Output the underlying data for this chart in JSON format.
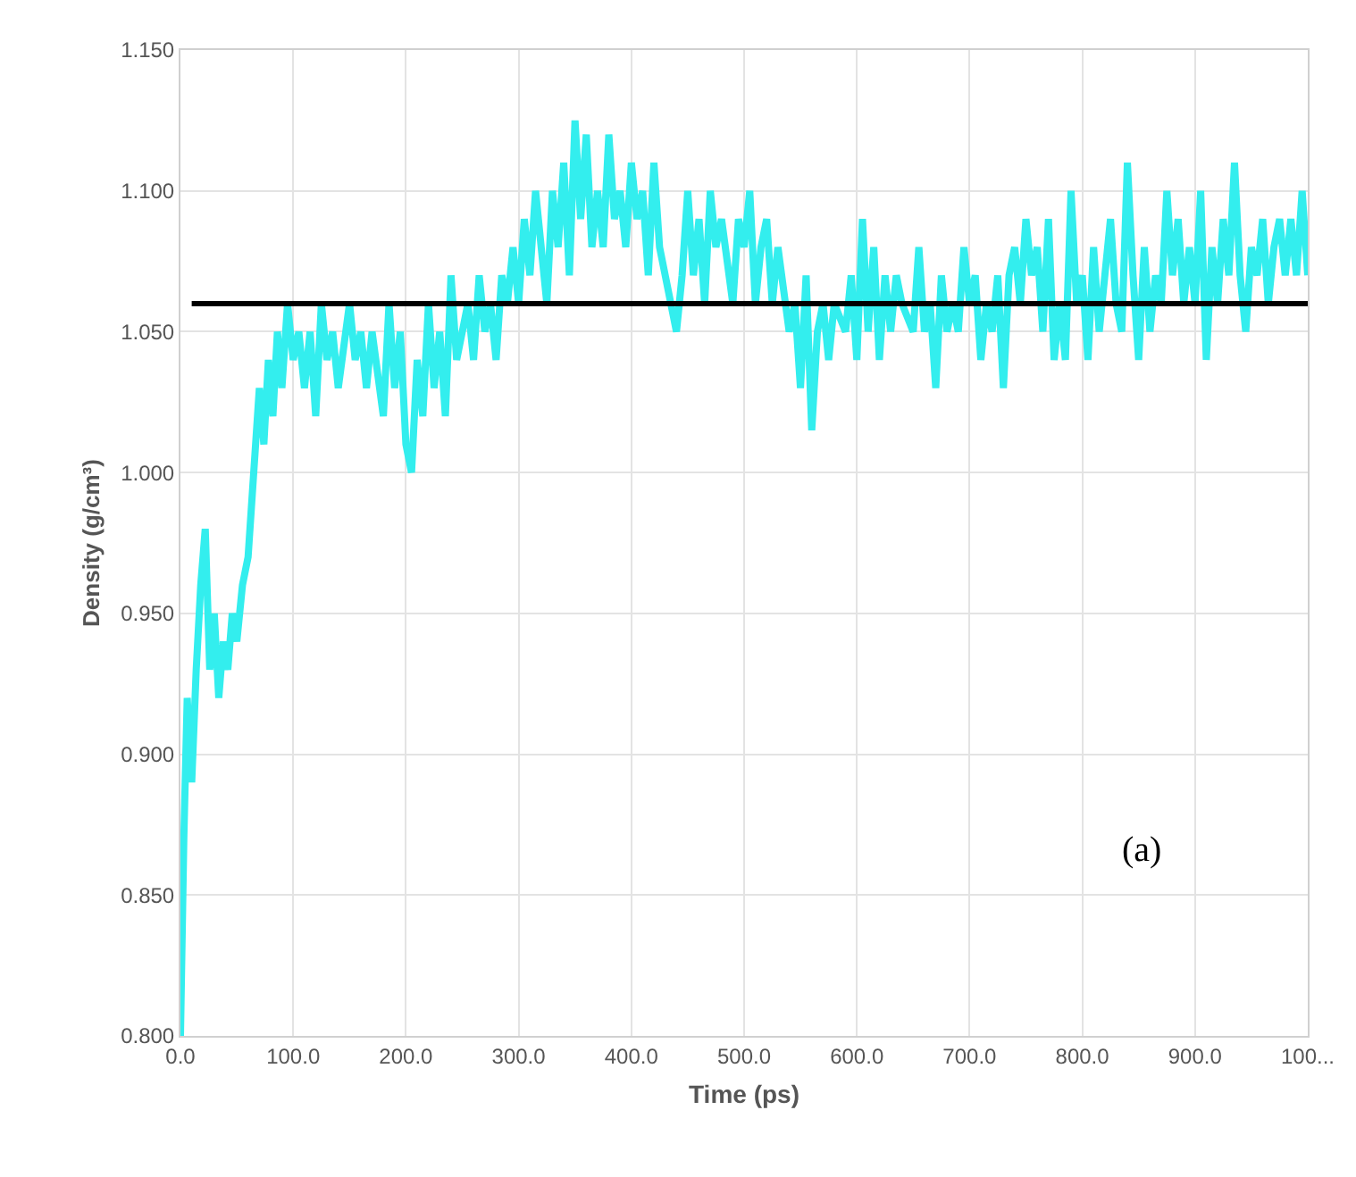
{
  "chart_data": {
    "type": "line",
    "xlabel": "Time (ps)",
    "ylabel": "Density (g/cm³)",
    "x": [
      0,
      3,
      6,
      10,
      14,
      18,
      22,
      26,
      30,
      34,
      38,
      42,
      46,
      50,
      55,
      60,
      65,
      70,
      74,
      78,
      82,
      86,
      90,
      95,
      100,
      105,
      110,
      115,
      120,
      125,
      130,
      135,
      140,
      150,
      155,
      160,
      165,
      170,
      180,
      185,
      190,
      195,
      200,
      205,
      210,
      215,
      220,
      225,
      230,
      235,
      240,
      245,
      250,
      255,
      260,
      265,
      270,
      275,
      280,
      285,
      290,
      295,
      300,
      305,
      310,
      315,
      320,
      325,
      330,
      335,
      340,
      345,
      350,
      355,
      360,
      365,
      370,
      375,
      380,
      385,
      390,
      395,
      400,
      405,
      410,
      415,
      420,
      425,
      430,
      440,
      445,
      450,
      455,
      460,
      465,
      470,
      475,
      480,
      490,
      495,
      500,
      505,
      510,
      515,
      520,
      525,
      530,
      540,
      545,
      550,
      555,
      560,
      565,
      570,
      575,
      580,
      590,
      595,
      600,
      605,
      610,
      615,
      620,
      625,
      630,
      635,
      640,
      650,
      655,
      660,
      665,
      670,
      675,
      680,
      685,
      690,
      695,
      700,
      705,
      710,
      715,
      720,
      725,
      730,
      735,
      740,
      745,
      750,
      755,
      760,
      765,
      770,
      775,
      780,
      785,
      790,
      795,
      800,
      805,
      810,
      815,
      820,
      825,
      830,
      835,
      840,
      845,
      850,
      855,
      860,
      865,
      870,
      875,
      880,
      885,
      890,
      895,
      900,
      905,
      910,
      915,
      920,
      925,
      930,
      935,
      940,
      945,
      950,
      955,
      960,
      965,
      970,
      975,
      980,
      985,
      990,
      995,
      1000
    ],
    "series": [
      {
        "color": "#33eeee",
        "values": [
          0.8,
          0.87,
          0.92,
          0.89,
          0.93,
          0.96,
          0.98,
          0.93,
          0.95,
          0.92,
          0.94,
          0.93,
          0.95,
          0.94,
          0.96,
          0.97,
          1.0,
          1.03,
          1.01,
          1.04,
          1.02,
          1.05,
          1.03,
          1.06,
          1.04,
          1.05,
          1.03,
          1.05,
          1.02,
          1.06,
          1.04,
          1.05,
          1.03,
          1.06,
          1.04,
          1.05,
          1.03,
          1.05,
          1.02,
          1.06,
          1.03,
          1.05,
          1.01,
          1.0,
          1.04,
          1.02,
          1.06,
          1.03,
          1.05,
          1.02,
          1.07,
          1.04,
          1.05,
          1.06,
          1.04,
          1.07,
          1.05,
          1.06,
          1.04,
          1.07,
          1.06,
          1.08,
          1.06,
          1.09,
          1.07,
          1.1,
          1.08,
          1.06,
          1.1,
          1.08,
          1.11,
          1.07,
          1.125,
          1.09,
          1.12,
          1.08,
          1.1,
          1.08,
          1.12,
          1.09,
          1.1,
          1.08,
          1.11,
          1.09,
          1.1,
          1.07,
          1.11,
          1.08,
          1.07,
          1.05,
          1.07,
          1.1,
          1.07,
          1.09,
          1.06,
          1.1,
          1.08,
          1.09,
          1.06,
          1.09,
          1.08,
          1.1,
          1.06,
          1.08,
          1.09,
          1.06,
          1.08,
          1.05,
          1.06,
          1.03,
          1.07,
          1.015,
          1.05,
          1.06,
          1.04,
          1.06,
          1.05,
          1.07,
          1.04,
          1.09,
          1.05,
          1.08,
          1.04,
          1.07,
          1.05,
          1.07,
          1.06,
          1.05,
          1.08,
          1.05,
          1.06,
          1.03,
          1.07,
          1.05,
          1.06,
          1.05,
          1.08,
          1.06,
          1.07,
          1.04,
          1.06,
          1.05,
          1.07,
          1.03,
          1.07,
          1.08,
          1.06,
          1.09,
          1.07,
          1.08,
          1.05,
          1.09,
          1.04,
          1.06,
          1.04,
          1.1,
          1.06,
          1.07,
          1.04,
          1.08,
          1.05,
          1.07,
          1.09,
          1.06,
          1.05,
          1.11,
          1.07,
          1.04,
          1.08,
          1.05,
          1.07,
          1.06,
          1.1,
          1.07,
          1.09,
          1.06,
          1.08,
          1.06,
          1.1,
          1.04,
          1.08,
          1.06,
          1.09,
          1.07,
          1.11,
          1.07,
          1.05,
          1.08,
          1.07,
          1.09,
          1.06,
          1.08,
          1.09,
          1.07,
          1.09,
          1.07,
          1.1,
          1.07
        ]
      }
    ],
    "xlim": [
      0,
      1000
    ],
    "xticks": [
      {
        "value": 0,
        "label": "0.0"
      },
      {
        "value": 100,
        "label": "100.0"
      },
      {
        "value": 200,
        "label": "200.0"
      },
      {
        "value": 300,
        "label": "300.0"
      },
      {
        "value": 400,
        "label": "400.0"
      },
      {
        "value": 500,
        "label": "500.0"
      },
      {
        "value": 600,
        "label": "600.0"
      },
      {
        "value": 700,
        "label": "700.0"
      },
      {
        "value": 800,
        "label": "800.0"
      },
      {
        "value": 900,
        "label": "900.0"
      },
      {
        "value": 1000,
        "label": "100..."
      }
    ],
    "ylim": [
      0.8,
      1.15
    ],
    "yticks": [
      {
        "value": 0.8,
        "label": "0.800"
      },
      {
        "value": 0.85,
        "label": "0.850"
      },
      {
        "value": 0.9,
        "label": "0.900"
      },
      {
        "value": 0.95,
        "label": "0.950"
      },
      {
        "value": 1.0,
        "label": "1.000"
      },
      {
        "value": 1.05,
        "label": "1.050"
      },
      {
        "value": 1.1,
        "label": "1.100"
      },
      {
        "value": 1.15,
        "label": "1.150"
      }
    ],
    "ref_lines": [
      {
        "axis": "y",
        "value": 1.06,
        "color": "#000000"
      }
    ],
    "annotations": [
      "(a)"
    ],
    "grid": true,
    "marker": "none",
    "line_style": "solid"
  }
}
